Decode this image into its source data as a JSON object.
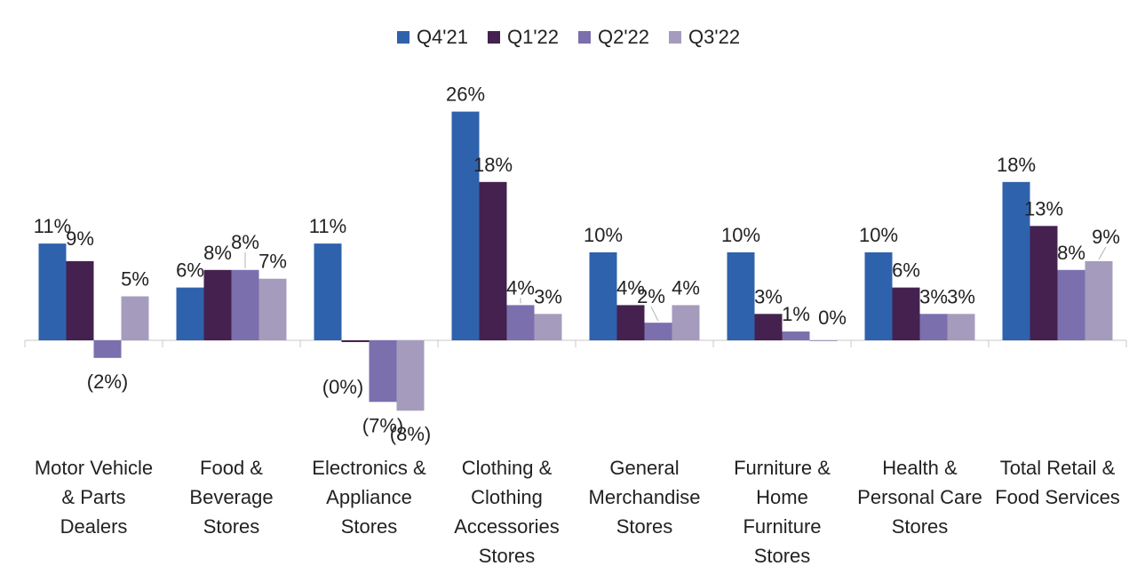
{
  "chart_data": {
    "type": "bar",
    "categories": [
      [
        "Motor Vehicle",
        "& Parts",
        "Dealers"
      ],
      [
        "Food &",
        "Beverage",
        "Stores"
      ],
      [
        "Electronics &",
        "Appliance",
        "Stores"
      ],
      [
        "Clothing &",
        "Clothing",
        "Accessories",
        "Stores"
      ],
      [
        "General",
        "Merchandise",
        "Stores"
      ],
      [
        "Furniture &",
        "Home",
        "Furniture",
        "Stores"
      ],
      [
        "Health &",
        "Personal Care",
        "Stores"
      ],
      [
        "Total Retail &",
        "Food Services"
      ]
    ],
    "series": [
      {
        "name": "Q4'21",
        "color": "#2f62ac",
        "values": [
          11,
          6,
          11,
          26,
          10,
          10,
          10,
          18
        ],
        "labels": [
          "11%",
          "6%",
          "11%",
          "26%",
          "10%",
          "10%",
          "10%",
          "18%"
        ]
      },
      {
        "name": "Q1'22",
        "color": "#44214e",
        "values": [
          9,
          8,
          -0.2,
          18,
          4,
          3,
          6,
          13
        ],
        "labels": [
          "9%",
          "8%",
          "(0%)",
          "18%",
          "4%",
          "3%",
          "6%",
          "13%"
        ]
      },
      {
        "name": "Q2'22",
        "color": "#7b6fae",
        "values": [
          -2,
          8,
          -7,
          4,
          2,
          1,
          3,
          8
        ],
        "labels": [
          "(2%)",
          "8%",
          "(7%)",
          "4%",
          "2%",
          "1%",
          "3%",
          "8%"
        ]
      },
      {
        "name": "Q3'22",
        "color": "#a59cbd",
        "values": [
          5,
          7,
          -8,
          3,
          4,
          0,
          3,
          9
        ],
        "labels": [
          "5%",
          "7%",
          "(8%)",
          "3%",
          "4%",
          "0%",
          "3%",
          "9%"
        ]
      }
    ],
    "ylim": [
      -8,
      26
    ],
    "grid": false,
    "legend": "top-center",
    "title": "",
    "xlabel": "",
    "ylabel": ""
  }
}
